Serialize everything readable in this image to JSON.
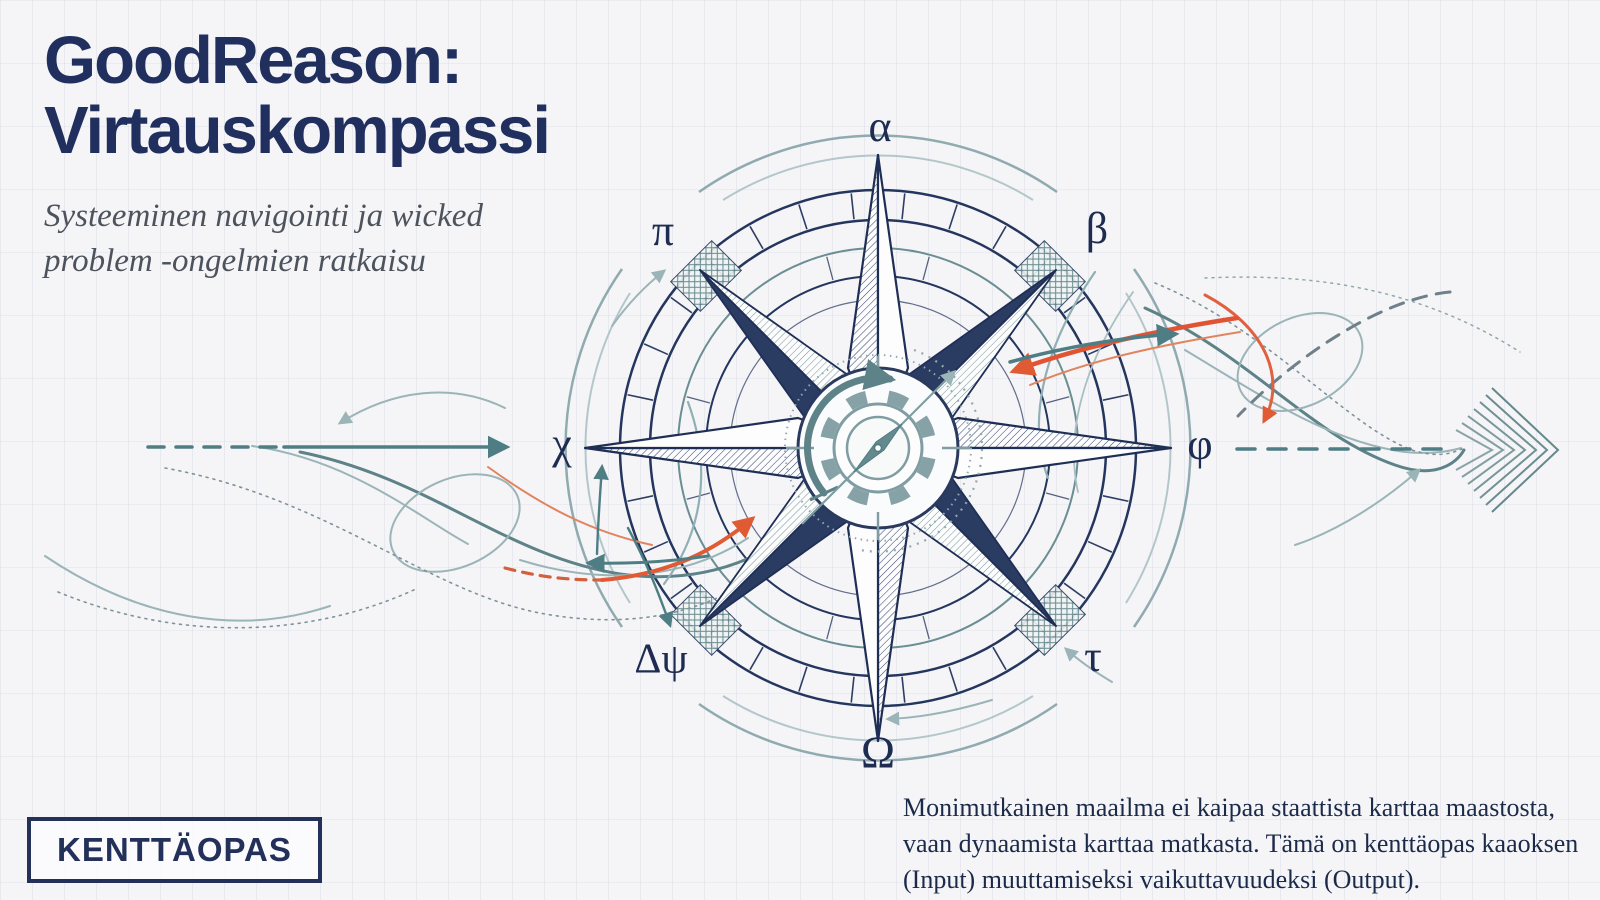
{
  "header": {
    "title_line1": "GoodReason:",
    "title_line2": "Virtauskompassi",
    "subtitle_line1": "Systeeminen navigointi ja wicked",
    "subtitle_line2": "problem -ongelmien ratkaisu"
  },
  "badge": {
    "label": "KENTTÄOPAS"
  },
  "compass": {
    "labels": {
      "n": "α",
      "ne": "β",
      "e": "φ",
      "se": "τ",
      "s": "Ω",
      "sw": "Δψ",
      "w": "χ",
      "nw": "π"
    }
  },
  "footer": {
    "line1": "Monimutkainen maailma ei kaipaa staattista karttaa maastosta,",
    "line2": "vaan dynaamista karttaa matkasta. Tämä on kenttäopas kaaoksen",
    "line3": "(Input) muuttamiseksi vaikuttavuudeksi (Output)."
  },
  "colors": {
    "navy": "#202f5e",
    "teal": "#5d8287",
    "teal_light": "#9ab4b8",
    "orange": "#e05a33",
    "ink": "#1c2a4a"
  }
}
